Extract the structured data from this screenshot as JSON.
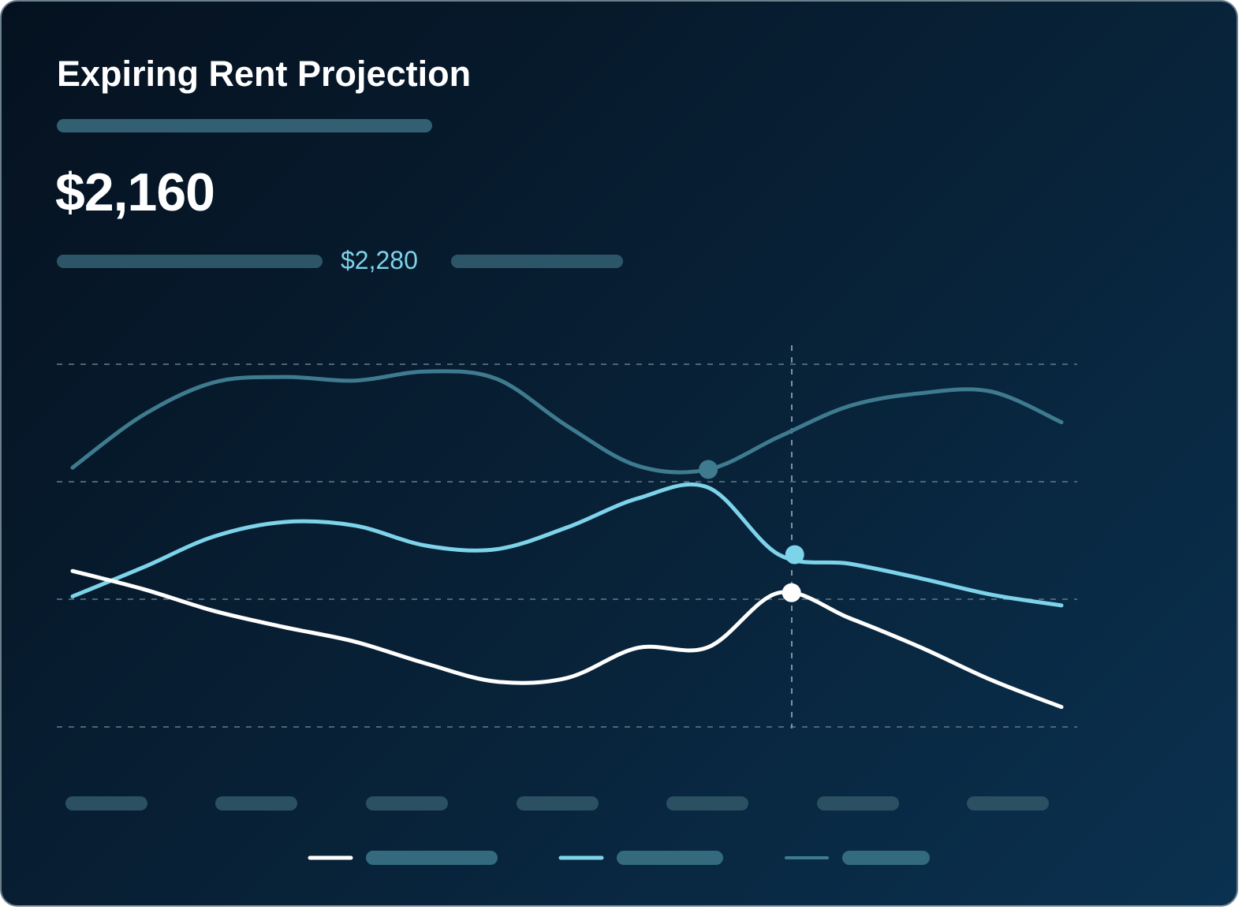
{
  "header": {
    "title": "Expiring Rent Projection",
    "primary_value": "$2,160",
    "secondary_value": "$2,280"
  },
  "colors": {
    "series_1": "#ffffff",
    "series_2": "#7dd3ea",
    "series_3": "#3f7b8f",
    "placeholder": "#2f5a6c"
  },
  "chart_data": {
    "type": "line",
    "title": "",
    "xlabel": "",
    "ylabel": "",
    "x": [
      1,
      2,
      3,
      4,
      5,
      6,
      7,
      8,
      9,
      10,
      11,
      12,
      13,
      14,
      15
    ],
    "ylim": [
      0,
      100
    ],
    "grid": true,
    "legend": "bottom",
    "highlight_index": 10,
    "series": [
      {
        "values": [
          43,
          38,
          32,
          27.5,
          23.5,
          17.5,
          12.5,
          13.5,
          21.8,
          22,
          37,
          30,
          22,
          13,
          5.5
        ]
      },
      {
        "values": [
          36,
          44,
          52.5,
          56.5,
          55.5,
          50,
          49,
          55,
          63,
          66,
          47.5,
          45,
          41,
          36.5,
          33.5
        ]
      },
      {
        "values": [
          71.5,
          86,
          95,
          96.5,
          95.5,
          98,
          96,
          83,
          72,
          71,
          80,
          88.5,
          92,
          92.5,
          84
        ]
      }
    ]
  }
}
